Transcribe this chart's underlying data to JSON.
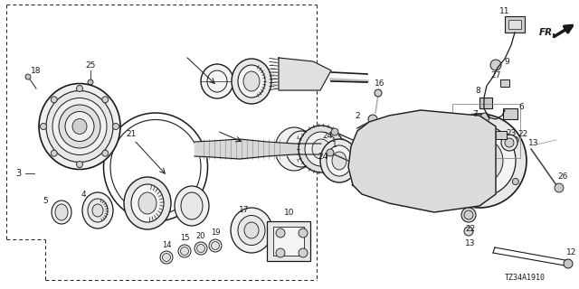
{
  "bg_color": "#ffffff",
  "line_color": "#1a1a1a",
  "fig_width": 6.4,
  "fig_height": 3.2,
  "dpi": 100,
  "diagram_code": "TZ34A1910"
}
